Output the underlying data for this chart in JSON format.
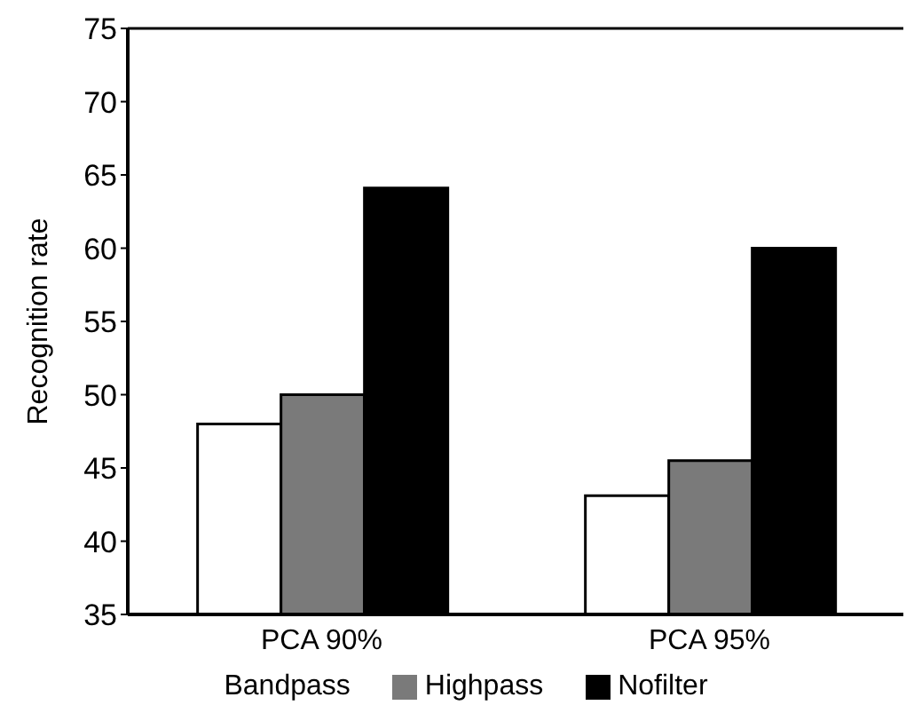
{
  "chart_data": {
    "type": "bar",
    "ylabel": "Recognition rate",
    "categories": [
      "PCA 90%",
      "PCA 95%"
    ],
    "series": [
      {
        "name": "Bandpass",
        "color": "#ffffff",
        "values": [
          48,
          43.1
        ]
      },
      {
        "name": "Highpass",
        "color": "#7a7a7a",
        "values": [
          50,
          45.5
        ]
      },
      {
        "name": "Nofilter",
        "color": "#000000",
        "values": [
          64.1,
          60
        ]
      }
    ],
    "ylim": [
      35,
      75
    ],
    "yticks": [
      35,
      40,
      45,
      50,
      55,
      60,
      65,
      70,
      75
    ],
    "grid": false,
    "legend": "bottom"
  }
}
